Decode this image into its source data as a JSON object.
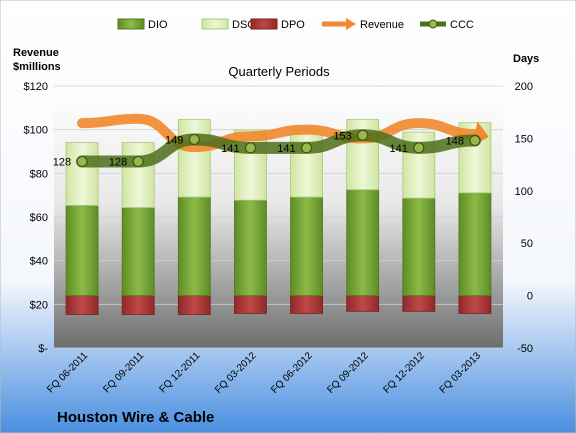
{
  "chart_data": {
    "type": "bar",
    "title": "Quarterly Periods",
    "company": "Houston Wire & Cable",
    "left_axis": {
      "title_line1": "Revenue",
      "title_line2": "$millions",
      "ylim": [
        0,
        120
      ],
      "ticks": [
        0,
        20,
        40,
        60,
        80,
        100,
        120
      ],
      "tick_labels": [
        "$-",
        "$20",
        "$40",
        "$60",
        "$80",
        "$100",
        "$120"
      ]
    },
    "right_axis": {
      "title": "Days",
      "ylim": [
        -50,
        200
      ],
      "ticks": [
        -50,
        0,
        50,
        100,
        150,
        200
      ],
      "tick_labels": [
        "-50",
        "0",
        "50",
        "100",
        "150",
        "200"
      ]
    },
    "categories": [
      "FQ 06-2011",
      "FQ 09-2011",
      "FQ 12-2011",
      "FQ 03-2012",
      "FQ 06-2012",
      "FQ 09-2012",
      "FQ 12-2012",
      "FQ 03-2013"
    ],
    "legend": {
      "position": "top",
      "items": [
        {
          "key": "dio",
          "label": "DIO"
        },
        {
          "key": "dso",
          "label": "DSO"
        },
        {
          "key": "dpo",
          "label": "DPO"
        },
        {
          "key": "revenue",
          "label": "Revenue"
        },
        {
          "key": "ccc",
          "label": "CCC"
        }
      ]
    },
    "series": [
      {
        "key": "dio",
        "name": "DIO",
        "axis": "right",
        "kind": "stacked-bar",
        "values": [
          86,
          84,
          94,
          91,
          94,
          101,
          93,
          98
        ]
      },
      {
        "key": "dso",
        "name": "DSO",
        "axis": "right",
        "kind": "stacked-bar",
        "values": [
          60,
          62,
          74,
          67,
          64,
          67,
          63,
          67
        ]
      },
      {
        "key": "dpo",
        "name": "DPO",
        "axis": "right",
        "kind": "negative-bar",
        "values": [
          -18,
          -18,
          -18,
          -17,
          -17,
          -15,
          -15,
          -17
        ]
      },
      {
        "key": "revenue",
        "name": "Revenue",
        "axis": "left",
        "kind": "arrow-line",
        "values": [
          103,
          105,
          92,
          97,
          100,
          96,
          103,
          98
        ]
      },
      {
        "key": "ccc",
        "name": "CCC",
        "axis": "right",
        "kind": "line-markers",
        "values": [
          128,
          128,
          149,
          141,
          141,
          153,
          141,
          148
        ],
        "labels": [
          "128",
          "128",
          "149",
          "141",
          "141",
          "153",
          "141",
          "148"
        ]
      }
    ],
    "colors": {
      "background_top": "#ffffff",
      "background_bottom": "#4a8fe0",
      "plot_top": "#ffffff",
      "plot_bottom": "#7a7a7a",
      "dio": "#76a03a",
      "dio_dark": "#4e7a1a",
      "dso": "#d8ebb0",
      "dso_edge": "#a8c878",
      "dpo": "#b13a3a",
      "dpo_dark": "#7a1e1e",
      "revenue": "#f08a30",
      "ccc": "#4e6e1a",
      "ccc_marker": "#9ab84a"
    },
    "grid": true
  }
}
